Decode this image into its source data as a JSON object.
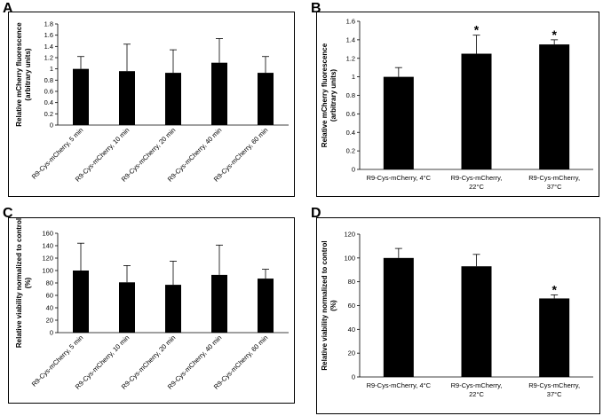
{
  "panels": {
    "A": {
      "letter": "A"
    },
    "B": {
      "letter": "B"
    },
    "C": {
      "letter": "C"
    },
    "D": {
      "letter": "D"
    }
  },
  "chart_data": [
    {
      "panel": "A",
      "type": "bar",
      "ylabel": "Relative mCherry fluorescence (arbitrary units)",
      "ylabel_lines": [
        "Relative mCherry fluorescence",
        "(arbitrary units)"
      ],
      "categories": [
        "R9-Cys-mCherry, 5 min",
        "R9-Cys-mCherry, 10 min",
        "R9-Cys-mCherry, 20 min",
        "R9-Cys-mCherry, 40 min",
        "R9-Cys-mCherry, 60 min"
      ],
      "values": [
        1.0,
        0.96,
        0.93,
        1.11,
        0.93
      ],
      "errors": [
        0.22,
        0.48,
        0.41,
        0.43,
        0.29
      ],
      "significance": [
        "",
        "",
        "",
        "",
        ""
      ],
      "ylim": [
        0,
        1.8
      ],
      "yticks": [
        0,
        0.2,
        0.4,
        0.6,
        0.8,
        1,
        1.2,
        1.4,
        1.6,
        1.8
      ],
      "ytick_labels": [
        "0",
        "0.2",
        "0.4",
        "0.6",
        "0.8",
        "1",
        "1.2",
        "1.4",
        "1.6",
        "1.8"
      ]
    },
    {
      "panel": "B",
      "type": "bar",
      "ylabel": "Relative mCherry fluorescence (arbitrary units)",
      "ylabel_lines": [
        "Relative mCherry fluorescence",
        "(arbitrary units)"
      ],
      "categories": [
        "R9-Cys-mCherry, 4°C",
        "R9-Cys-mCherry, 22°C",
        "R9-Cys-mCherry, 37°C"
      ],
      "category_lines": [
        [
          "R9-Cys-mCherry, 4°C"
        ],
        [
          "R9-Cys-mCherry,",
          "22°C"
        ],
        [
          "R9-Cys-mCherry,",
          "37°C"
        ]
      ],
      "values": [
        1.0,
        1.25,
        1.35
      ],
      "errors": [
        0.1,
        0.2,
        0.05
      ],
      "significance": [
        "",
        "*",
        "*"
      ],
      "ylim": [
        0,
        1.6
      ],
      "yticks": [
        0,
        0.2,
        0.4,
        0.6,
        0.8,
        1,
        1.2,
        1.4,
        1.6
      ],
      "ytick_labels": [
        "0",
        "0.2",
        "0.4",
        "0.6",
        "0.8",
        "1",
        "1.2",
        "1.4",
        "1.6"
      ]
    },
    {
      "panel": "C",
      "type": "bar",
      "ylabel": "Relative viability normalized to control (%)",
      "ylabel_lines": [
        "Relative viability normalized to control",
        "(%)"
      ],
      "categories": [
        "R9-Cys-mCherry, 5 min",
        "R9-Cys-mCherry, 10 min",
        "R9-Cys-mCherry, 20 min",
        "R9-Cys-mCherry, 40 min",
        "R9-Cys-mCherry, 60 min"
      ],
      "values": [
        100,
        81,
        77,
        93,
        87
      ],
      "errors": [
        44,
        27,
        38,
        48,
        15
      ],
      "significance": [
        "",
        "",
        "",
        "",
        ""
      ],
      "ylim": [
        0,
        160
      ],
      "yticks": [
        0,
        20,
        40,
        60,
        80,
        100,
        120,
        140,
        160
      ],
      "ytick_labels": [
        "0",
        "20",
        "40",
        "60",
        "80",
        "100",
        "120",
        "140",
        "160"
      ]
    },
    {
      "panel": "D",
      "type": "bar",
      "ylabel": "Relative viability normalized to control (%)",
      "ylabel_lines": [
        "Relative viability normalized to control",
        "(%)"
      ],
      "categories": [
        "R9-Cys-mCherry, 4°C",
        "R9-Cys-mCherry, 22°C",
        "R9-Cys-mCherry, 37°C"
      ],
      "category_lines": [
        [
          "R9-Cys-mCherry, 4°C"
        ],
        [
          "R9-Cys-mCherry,",
          "22°C"
        ],
        [
          "R9-Cys-mCherry,",
          "37°C"
        ]
      ],
      "values": [
        100,
        93,
        66
      ],
      "errors": [
        8,
        10,
        3
      ],
      "significance": [
        "",
        "",
        "*"
      ],
      "ylim": [
        0,
        120
      ],
      "yticks": [
        0,
        20,
        40,
        60,
        80,
        100,
        120
      ],
      "ytick_labels": [
        "0",
        "20",
        "40",
        "60",
        "80",
        "100",
        "120"
      ]
    }
  ]
}
